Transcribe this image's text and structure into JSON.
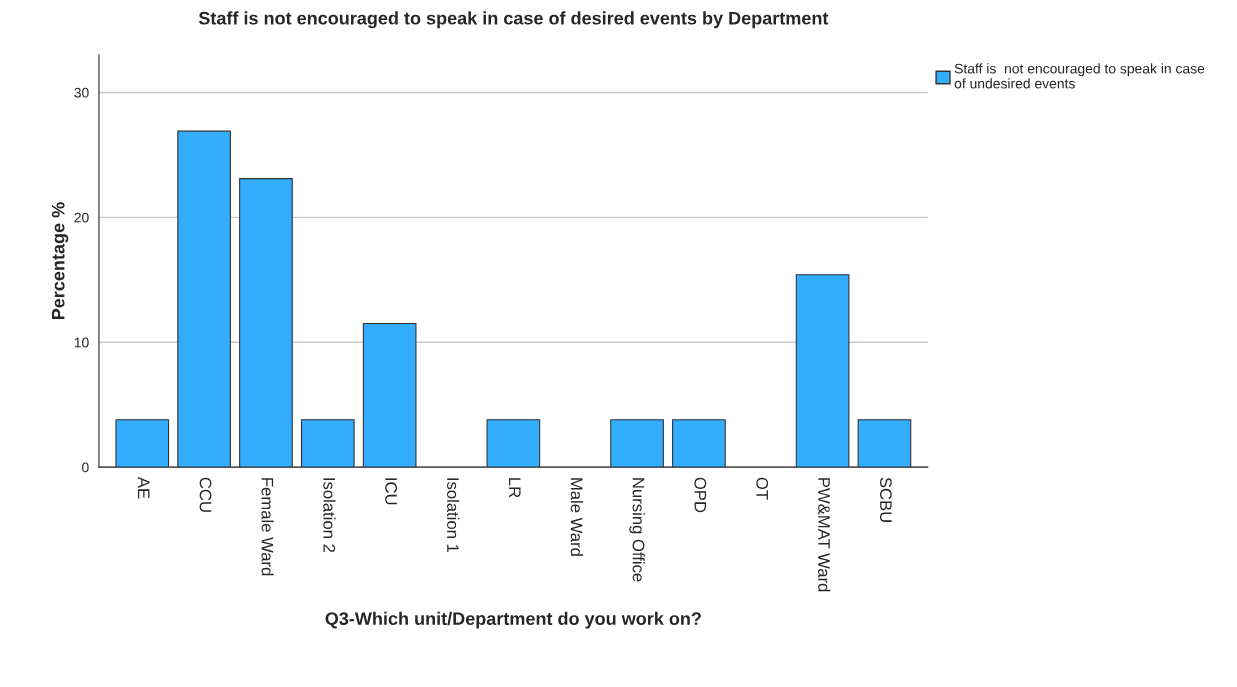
{
  "chart_data": {
    "type": "bar",
    "title": "Staff is not encouraged to speak in case of desired events by Department",
    "xlabel": "Q3-Which unit/Department do you work on?",
    "ylabel": "Percentage %",
    "categories": [
      "AE",
      "CCU",
      "Female Ward",
      "Isolation 2",
      "ICU",
      "Isolation 1",
      "LR",
      "Male Ward",
      "Nursing Office",
      "OPD",
      "OT",
      "PW&MAT Ward",
      "SCBU"
    ],
    "series": [
      {
        "name": "Staff is  not encouraged to speak in case\nof undesired events",
        "color": "#33adff",
        "values": [
          3.8,
          26.9,
          23.1,
          3.8,
          11.5,
          0,
          3.8,
          0,
          3.8,
          3.8,
          0,
          15.4,
          3.8
        ]
      }
    ],
    "ylim": [
      0,
      33
    ],
    "yticks": [
      0,
      10,
      20,
      30
    ],
    "grid": "y",
    "legend": "top right"
  }
}
